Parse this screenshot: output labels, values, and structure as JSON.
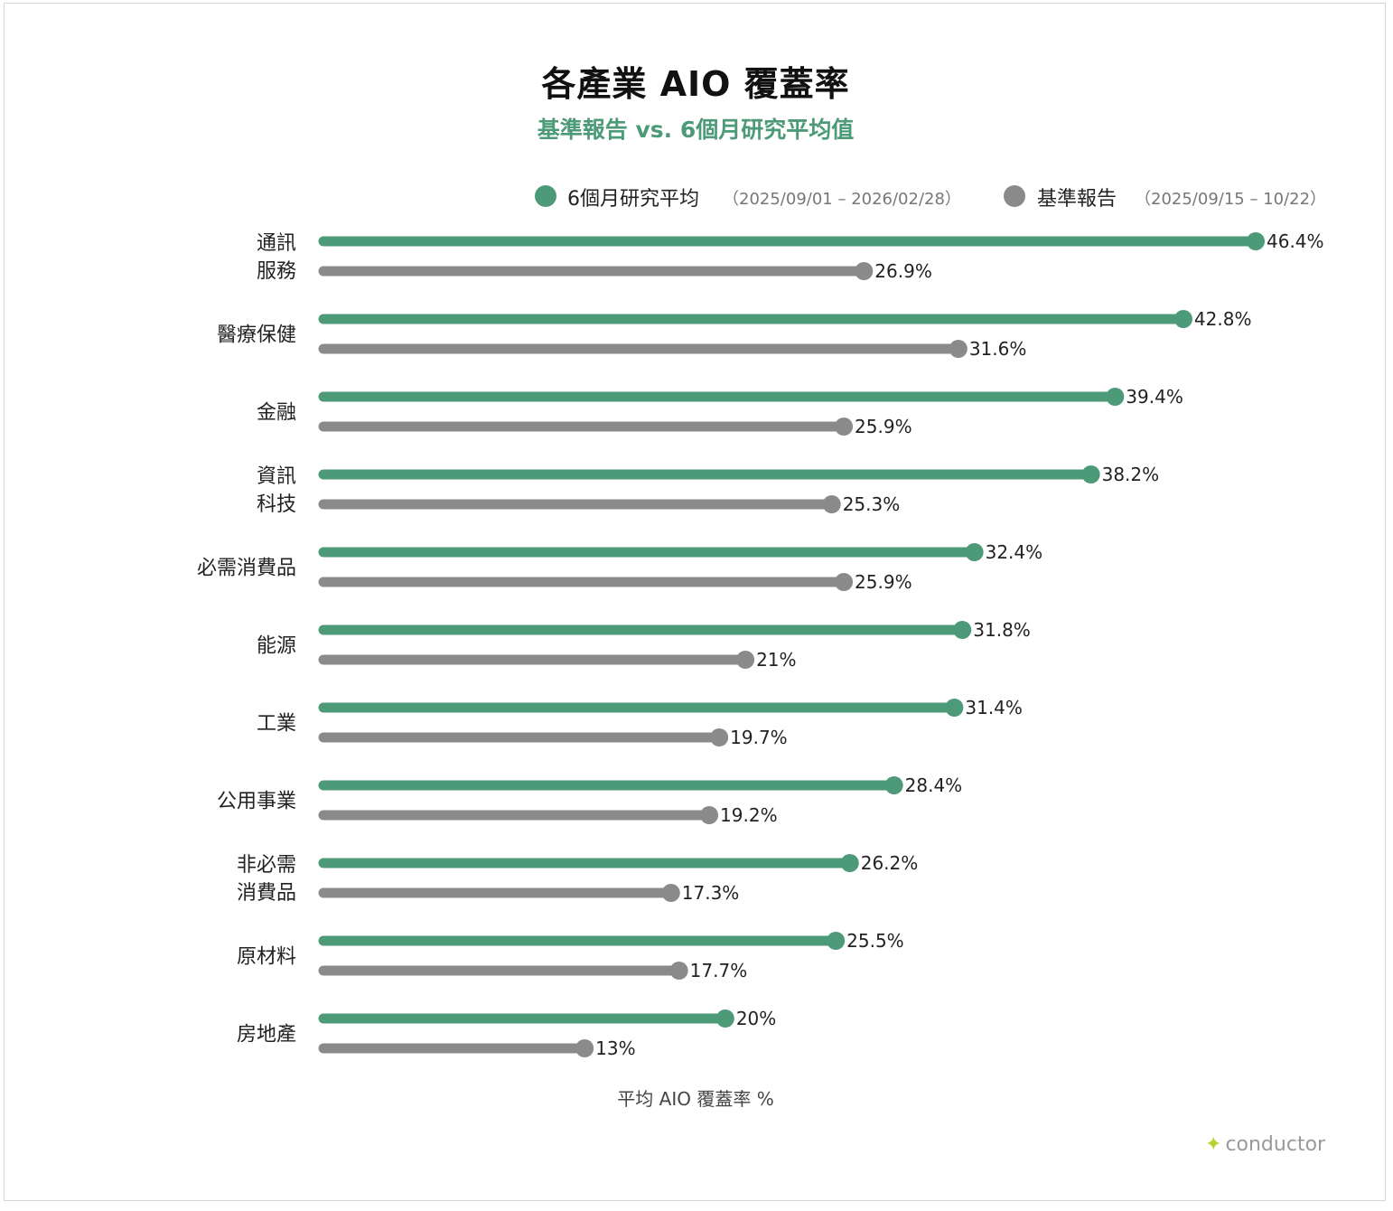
{
  "chart_data": {
    "type": "bar",
    "title": "各產業 AIO 覆蓋率",
    "subtitle": "基準報告 vs. 6個月研究平均值",
    "xlabel": "平均 AIO 覆蓋率 %",
    "xlim": [
      0,
      50
    ],
    "grid": false,
    "legend_placement": "top",
    "categories": [
      "通訊\n服務",
      "醫療保健",
      "金融",
      "資訊\n科技",
      "必需消費品",
      "能源",
      "工業",
      "公用事業",
      "非必需\n消費品",
      "原材料",
      "房地產"
    ],
    "series": [
      {
        "name": "6個月研究平均",
        "range": "（2025/09/01 – 2026/02/28）",
        "color": "#4d9a78",
        "values": [
          46.4,
          42.8,
          39.4,
          38.2,
          32.4,
          31.8,
          31.4,
          28.4,
          26.2,
          25.5,
          20
        ],
        "labels": [
          "46.4%",
          "42.8%",
          "39.4%",
          "38.2%",
          "32.4%",
          "31.8%",
          "31.4%",
          "28.4%",
          "26.2%",
          "25.5%",
          "20%"
        ]
      },
      {
        "name": "基準報告",
        "range": "（2025/09/15 – 10/22）",
        "color": "#8a8a8a",
        "values": [
          26.9,
          31.6,
          25.9,
          25.3,
          25.9,
          21,
          19.7,
          19.2,
          17.3,
          17.7,
          13
        ],
        "labels": [
          "26.9%",
          "31.6%",
          "25.9%",
          "25.3%",
          "25.9%",
          "21%",
          "19.7%",
          "19.2%",
          "17.3%",
          "17.7%",
          "13%"
        ]
      }
    ]
  },
  "brand": {
    "icon": "sparkle-icon",
    "name": "conductor",
    "color": "#b7d131"
  }
}
